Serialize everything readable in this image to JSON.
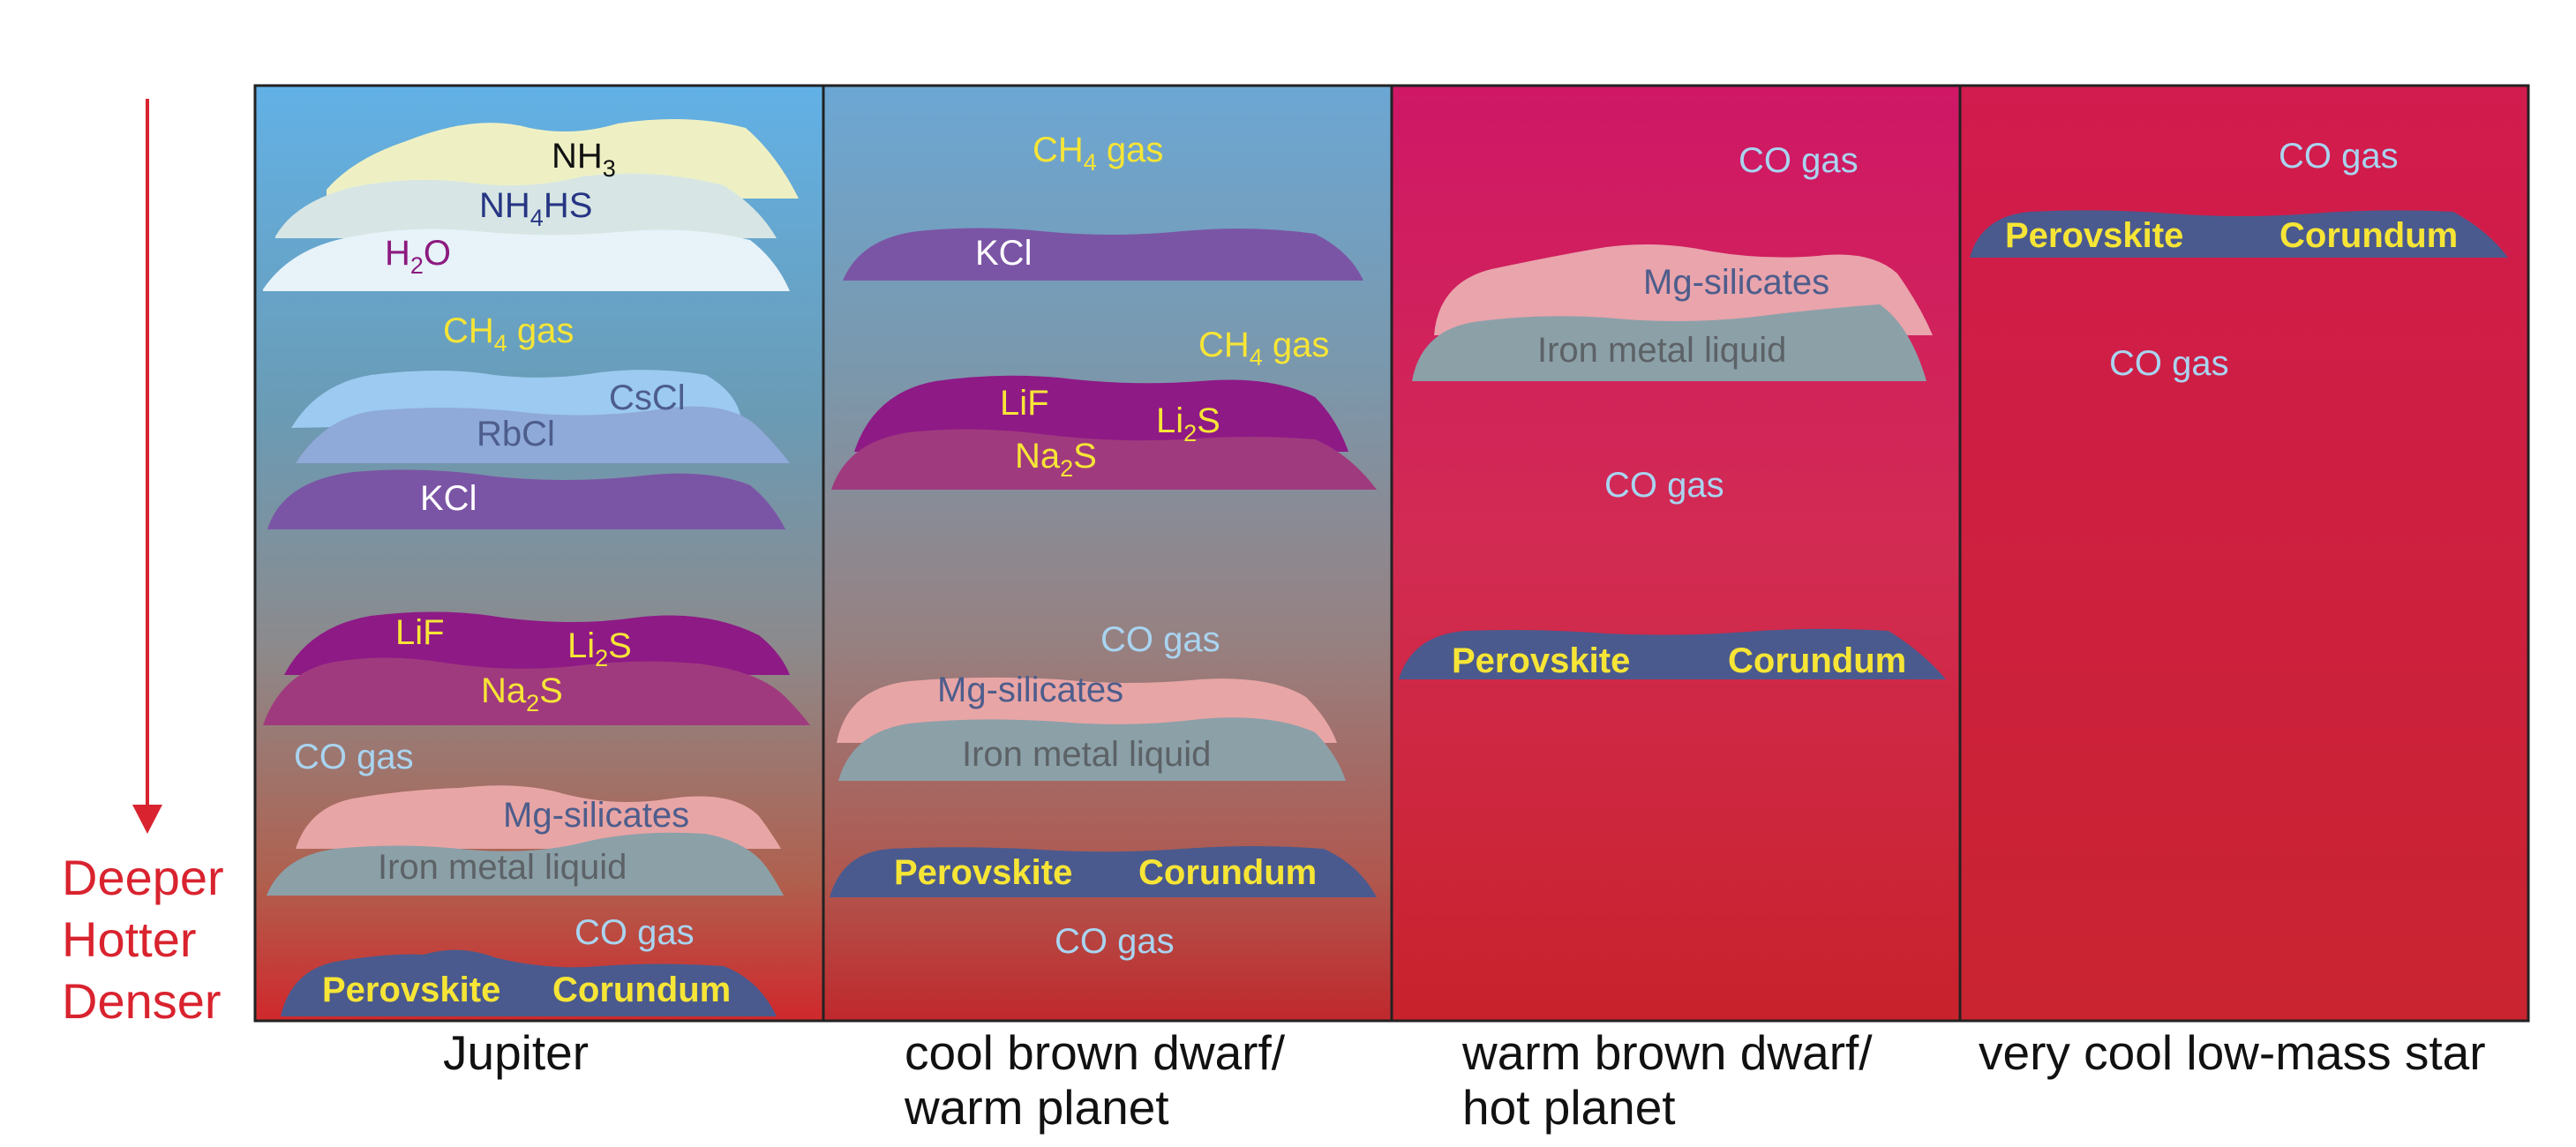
{
  "colors": {
    "yellow_text": "#f7e536",
    "light_blue_text": "#a9d4f0",
    "slate_text": "#4d5d8c",
    "gray_text": "#5c6266",
    "white_text": "#ffffff",
    "purple_text": "#8c1a7f",
    "navy_text": "#263583",
    "black_text": "#111111",
    "arrow_red": "#d9232f"
  },
  "depth_arrow": {
    "lines": [
      "Deeper",
      "Hotter",
      "Denser"
    ]
  },
  "panels": [
    {
      "label": "Jupiter",
      "labels": {
        "nh3": "NH",
        "nh3_sub": "3",
        "nh4hs_a": "NH",
        "nh4hs_sub": "4",
        "nh4hs_b": "HS",
        "h2o_a": "H",
        "h2o_sub": "2",
        "h2o_b": "O",
        "ch4_a": "CH",
        "ch4_sub": "4",
        "ch4_b": " gas",
        "cscl": "CsCl",
        "rbcl": "RbCl",
        "kcl": "KCl",
        "lif": "LiF",
        "li2s_a": "Li",
        "li2s_sub": "2",
        "li2s_b": "S",
        "na2s_a": "Na",
        "na2s_sub": "2",
        "na2s_b": "S",
        "co_gas_1": "CO gas",
        "mg_silicates": "Mg-silicates",
        "iron": "Iron metal liquid",
        "co_gas_2": "CO gas",
        "perovskite": "Perovskite",
        "corundum": "Corundum"
      }
    },
    {
      "label": "cool brown dwarf/\nwarm planet",
      "labels": {
        "ch4_top_a": "CH",
        "ch4_top_sub": "4",
        "ch4_top_b": " gas",
        "kcl": "KCl",
        "ch4_a": "CH",
        "ch4_sub": "4",
        "ch4_b": " gas",
        "lif": "LiF",
        "li2s_a": "Li",
        "li2s_sub": "2",
        "li2s_b": "S",
        "na2s_a": "Na",
        "na2s_sub": "2",
        "na2s_b": "S",
        "co_gas_1": "CO gas",
        "mg_silicates": "Mg-silicates",
        "iron": "Iron metal liquid",
        "perovskite": "Perovskite",
        "corundum": "Corundum",
        "co_gas_2": "CO gas"
      }
    },
    {
      "label": "warm brown dwarf/\nhot planet",
      "labels": {
        "co_gas_1": "CO gas",
        "mg_silicates": "Mg-silicates",
        "iron": "Iron metal liquid",
        "co_gas_2": "CO gas",
        "perovskite": "Perovskite",
        "corundum": "Corundum"
      }
    },
    {
      "label": "very cool low-mass star",
      "labels": {
        "co_gas_1": "CO gas",
        "perovskite": "Perovskite",
        "corundum": "Corundum",
        "co_gas_2": "CO gas"
      }
    }
  ]
}
